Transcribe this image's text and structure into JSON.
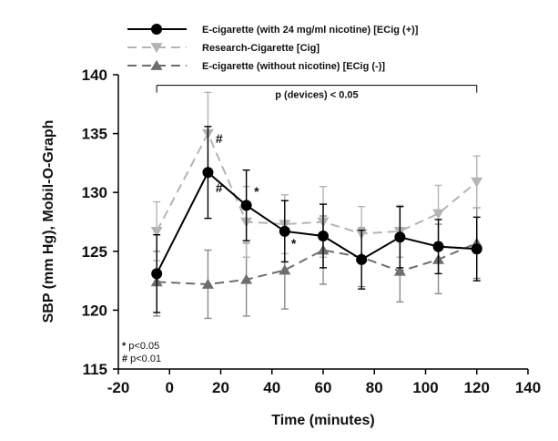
{
  "chart_data": {
    "type": "line",
    "xlabel": "Time (minutes)",
    "ylabel": "SBP (mm Hg), Mobil-O-Graph",
    "xlim": [
      -20,
      140
    ],
    "ylim": [
      115,
      140
    ],
    "xticks": [
      -20,
      0,
      20,
      40,
      60,
      80,
      100,
      120,
      140
    ],
    "yticks": [
      115,
      120,
      125,
      130,
      135,
      140
    ],
    "x": [
      -5,
      15,
      30,
      45,
      60,
      75,
      90,
      105,
      120
    ],
    "grid": false,
    "legend_position": "top-left",
    "series": [
      {
        "name": "E-cigarette (with 24 mg/ml nicotine) [ECig (+)]",
        "color": "#000000",
        "line_style": "solid",
        "marker": "circle",
        "values": [
          123.1,
          131.7,
          128.9,
          126.7,
          126.3,
          124.3,
          126.2,
          125.4,
          125.2
        ],
        "err_upper": [
          126.4,
          135.6,
          131.9,
          129.3,
          129.0,
          126.8,
          128.8,
          127.7,
          127.9
        ],
        "err_lower": [
          119.8,
          127.8,
          125.9,
          124.1,
          123.6,
          121.8,
          123.6,
          123.1,
          122.5
        ]
      },
      {
        "name": "Research-Cigarette [Cig]",
        "color": "#b4b4b4",
        "line_style": "dashed",
        "marker": "triangle-down",
        "values": [
          126.7,
          135.0,
          127.5,
          127.3,
          127.5,
          126.5,
          126.7,
          128.2,
          130.9
        ],
        "err_upper": [
          129.2,
          138.5,
          130.5,
          129.8,
          130.5,
          128.8,
          128.9,
          130.6,
          133.1
        ],
        "err_lower": [
          124.2,
          131.5,
          124.5,
          124.8,
          124.5,
          124.2,
          124.5,
          125.8,
          128.7
        ]
      },
      {
        "name": "E-cigarette (without nicotine) [ECig (-)]",
        "color": "#6e6e6e",
        "line_style": "dashed",
        "marker": "triangle-up",
        "values": [
          122.4,
          122.2,
          122.6,
          123.4,
          125.1,
          124.5,
          123.3,
          124.3,
          125.7
        ],
        "err_upper": [
          125.0,
          125.1,
          125.7,
          126.6,
          128.0,
          127.0,
          126.0,
          127.3,
          128.7
        ],
        "err_lower": [
          119.5,
          119.3,
          119.5,
          120.1,
          122.2,
          122.0,
          120.7,
          121.4,
          122.7
        ]
      }
    ],
    "annotations": [
      {
        "text": "*",
        "x": 33,
        "y": 129.7
      },
      {
        "text": "*",
        "x": 47.5,
        "y": 125.3
      },
      {
        "text": "#",
        "x": 18,
        "y": 130.0,
        "color": "#000000"
      },
      {
        "text": "#",
        "x": 18,
        "y": 134.2,
        "color": "#a0a0a0"
      }
    ],
    "bracket": {
      "label": "p (devices) < 0.05",
      "x_start": -5,
      "x_end": 120,
      "y": 139.1
    },
    "significance_notes": [
      {
        "symbol": "*",
        "text": "p<0.05"
      },
      {
        "symbol": "#",
        "text": "p<0.01"
      }
    ]
  }
}
